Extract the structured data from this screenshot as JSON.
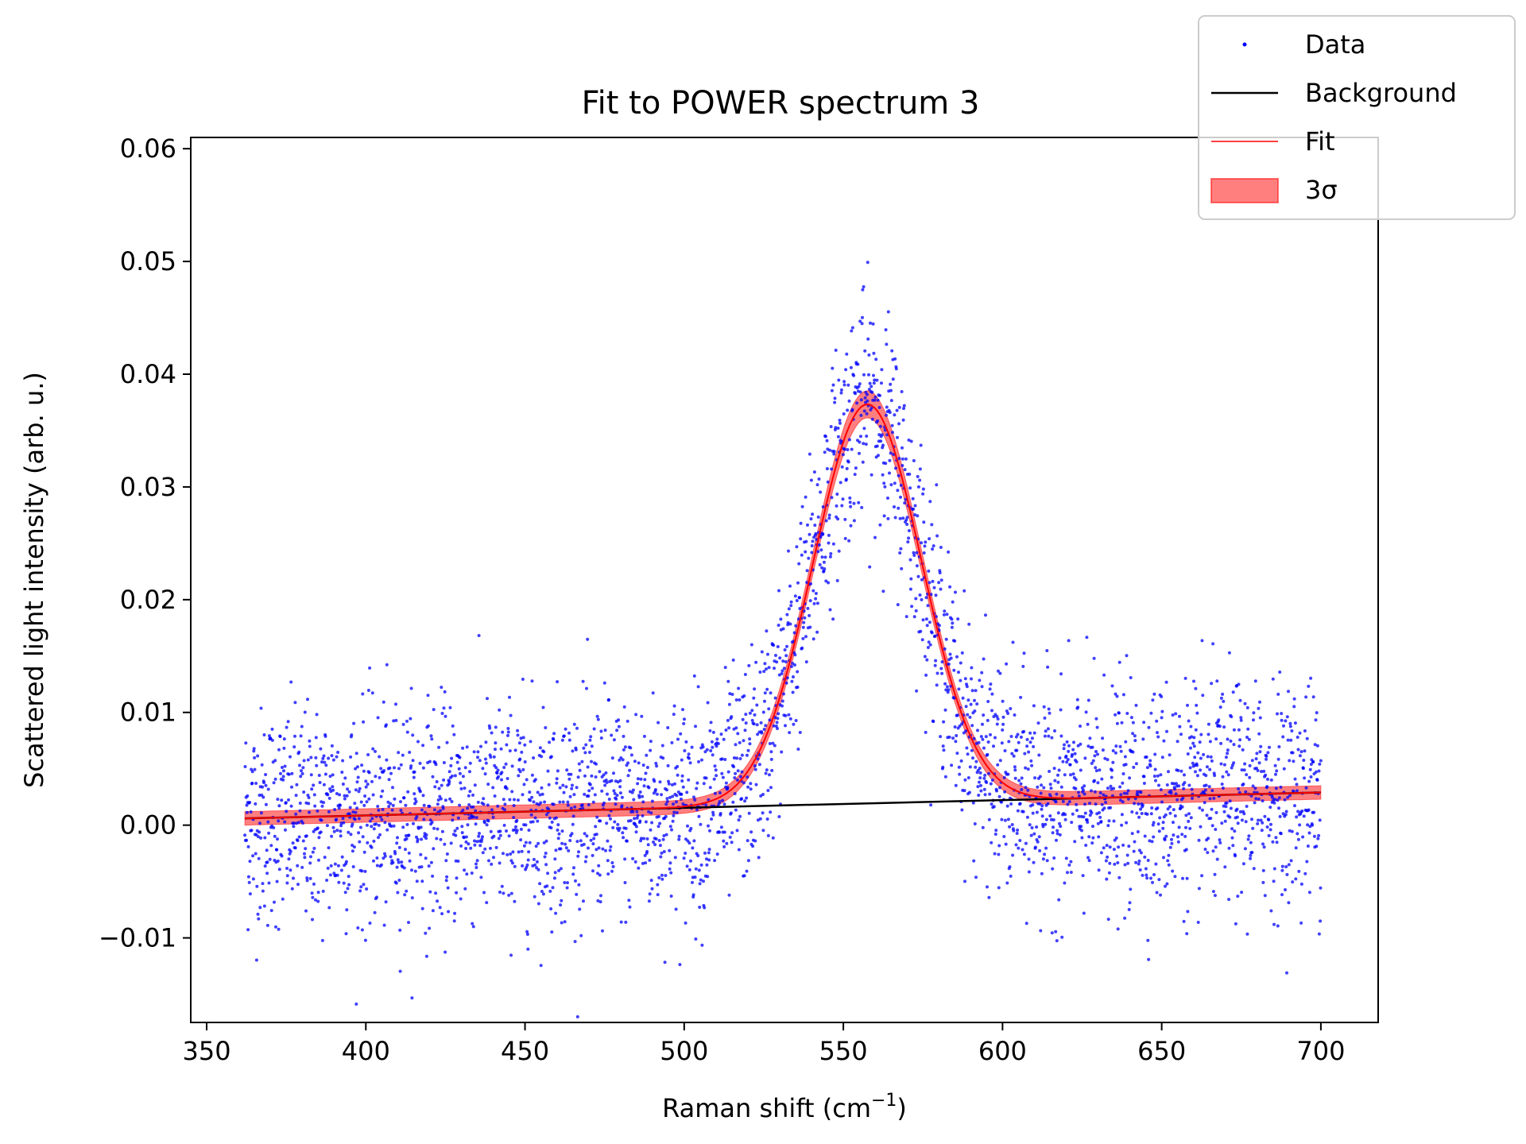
{
  "chart_data": {
    "type": "scatter",
    "title": "Fit to POWER spectrum 3",
    "xlabel": "Raman shift (cm",
    "xlabel_sup": "−1",
    "xlabel_close": ")",
    "ylabel": "Scattered light intensity (arb. u.)",
    "xlim": [
      345,
      718
    ],
    "ylim": [
      -0.0175,
      0.061
    ],
    "xticks": [
      350,
      400,
      450,
      500,
      550,
      600,
      650,
      700
    ],
    "xtick_labels": [
      "350",
      "400",
      "450",
      "500",
      "550",
      "600",
      "650",
      "700"
    ],
    "yticks": [
      -0.01,
      0.0,
      0.01,
      0.02,
      0.03,
      0.04,
      0.05,
      0.06
    ],
    "ytick_labels": [
      "−0.01",
      "0.00",
      "0.01",
      "0.02",
      "0.03",
      "0.04",
      "0.05",
      "0.06"
    ],
    "grid": false,
    "legend_position": "top-right (outside axes)",
    "legend": [
      {
        "label": "Data",
        "style": "dots",
        "color": "#0000ff"
      },
      {
        "label": "Background",
        "style": "line",
        "color": "#000000"
      },
      {
        "label": "Fit",
        "style": "line",
        "color": "#ff0000"
      },
      {
        "label": "3σ",
        "style": "patch",
        "color": "#ff0000"
      }
    ],
    "series": [
      {
        "name": "Data",
        "kind": "scatter",
        "color": "#0000ff",
        "x_range": [
          362,
          700
        ],
        "n_points_per_unit_x": 10,
        "noise_sd": 0.0048,
        "description_note_omitted": true
      },
      {
        "name": "Background",
        "kind": "line",
        "color": "#000000",
        "x": [
          362,
          700
        ],
        "y": [
          0.0006,
          0.0029
        ]
      },
      {
        "name": "Fit",
        "kind": "line",
        "color": "#ff0000",
        "model": "gaussian_plus_linear_background",
        "peak_center": 557.5,
        "peak_amplitude": 0.0354,
        "peak_sigma": 17.0,
        "x_range": [
          362,
          700
        ]
      },
      {
        "name": "3σ",
        "kind": "band",
        "color": "#ff0000",
        "band_halfwidth_baseline": 0.0006,
        "band_halfwidth_peak": 0.0012
      }
    ]
  }
}
